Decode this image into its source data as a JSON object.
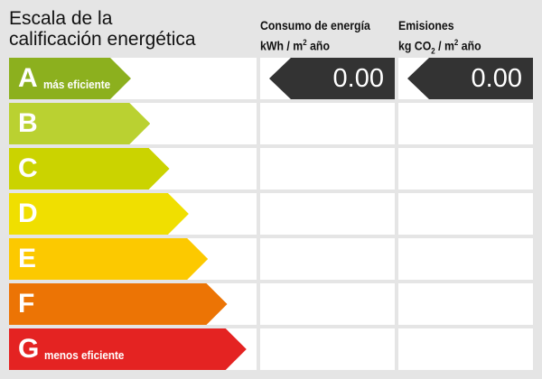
{
  "title_line1": "Escala de la",
  "title_line2": "calificación energética",
  "consumo": {
    "line1": "Consumo de energía",
    "unit_pre": "kWh / m",
    "unit_sup": "2",
    "unit_post": " año",
    "value": "0.00"
  },
  "emisiones": {
    "line1": "Emisiones",
    "unit_pre": "kg CO",
    "unit_sub": "2",
    "unit_mid": " / m",
    "unit_sup": "2",
    "unit_post": " año",
    "value": "0.00"
  },
  "ratings": [
    {
      "letter": "A",
      "label": "más eficiente",
      "color": "#8cb01e"
    },
    {
      "letter": "B",
      "label": "",
      "color": "#bad131"
    },
    {
      "letter": "C",
      "label": "",
      "color": "#cbd300"
    },
    {
      "letter": "D",
      "label": "",
      "color": "#f0df00"
    },
    {
      "letter": "E",
      "label": "",
      "color": "#fcc900"
    },
    {
      "letter": "F",
      "label": "",
      "color": "#ec7405"
    },
    {
      "letter": "G",
      "label": "menos eficiente",
      "color": "#e42322"
    }
  ],
  "selected_rating": "A"
}
